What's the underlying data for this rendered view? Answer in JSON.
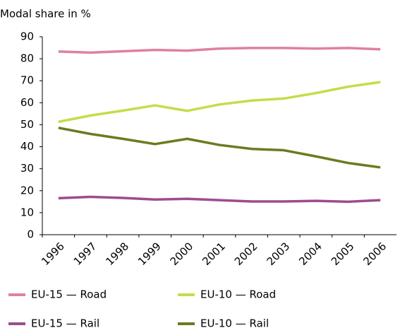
{
  "chart_data": {
    "type": "line",
    "title": "Modal share in %",
    "categories": [
      "1996",
      "1997",
      "1998",
      "1999",
      "2000",
      "2001",
      "2002",
      "2003",
      "2004",
      "2005",
      "2006"
    ],
    "series": [
      {
        "name": "EU-15 — Road",
        "color": "#df80a5",
        "values": [
          83.3,
          82.8,
          83.4,
          84,
          83.7,
          84.6,
          84.9,
          84.9,
          84.6,
          84.9,
          84.3
        ]
      },
      {
        "name": "EU-10 — Road",
        "color": "#c7db4b",
        "values": [
          51.3,
          54.2,
          56.4,
          58.8,
          56.3,
          59.2,
          61,
          61.9,
          64.4,
          67.3,
          69.4
        ]
      },
      {
        "name": "EU-15 — Rail",
        "color": "#9c4c90",
        "values": [
          16.6,
          17.2,
          16.7,
          16,
          16.3,
          15.7,
          15.1,
          15.1,
          15.4,
          15,
          15.7
        ]
      },
      {
        "name": "EU-10 — Rail",
        "color": "#6b7b1f",
        "values": [
          48.6,
          45.8,
          43.6,
          41.2,
          43.6,
          40.8,
          39,
          38.4,
          35.6,
          32.6,
          30.6
        ]
      }
    ],
    "ylim": [
      0,
      90
    ],
    "yticks": [
      0,
      10,
      20,
      30,
      40,
      50,
      60,
      70,
      80,
      90
    ],
    "grid": false
  }
}
